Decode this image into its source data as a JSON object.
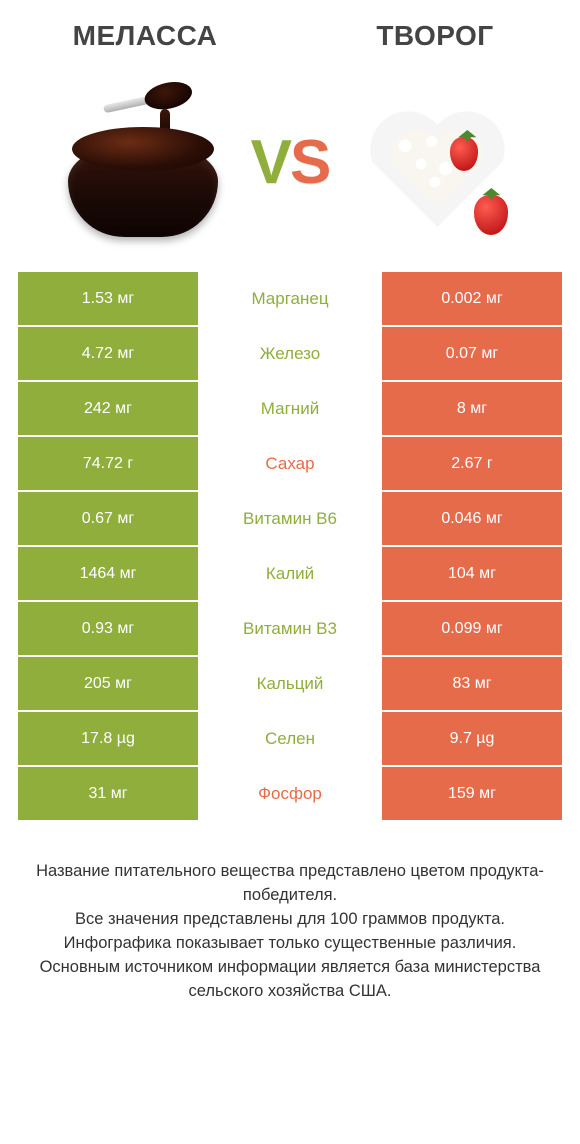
{
  "colors": {
    "left": "#8fae3c",
    "right": "#e66b4a",
    "text": "#333333",
    "bg": "#ffffff"
  },
  "font": {
    "title_size": 28,
    "cell_size": 16,
    "vs_size": 62,
    "footer_size": 16.5
  },
  "left": {
    "title": "МЕЛАССА"
  },
  "right": {
    "title": "ТВОРОГ"
  },
  "vs": "VS",
  "rows": [
    {
      "nutrient": "Марганец",
      "left": "1.53 мг",
      "right": "0.002 мг",
      "winner": "left"
    },
    {
      "nutrient": "Железо",
      "left": "4.72 мг",
      "right": "0.07 мг",
      "winner": "left"
    },
    {
      "nutrient": "Магний",
      "left": "242 мг",
      "right": "8 мг",
      "winner": "left"
    },
    {
      "nutrient": "Сахар",
      "left": "74.72 г",
      "right": "2.67 г",
      "winner": "right"
    },
    {
      "nutrient": "Витамин B6",
      "left": "0.67 мг",
      "right": "0.046 мг",
      "winner": "left"
    },
    {
      "nutrient": "Калий",
      "left": "1464 мг",
      "right": "104 мг",
      "winner": "left"
    },
    {
      "nutrient": "Витамин B3",
      "left": "0.93 мг",
      "right": "0.099 мг",
      "winner": "left"
    },
    {
      "nutrient": "Кальций",
      "left": "205 мг",
      "right": "83 мг",
      "winner": "left"
    },
    {
      "nutrient": "Селен",
      "left": "17.8 µg",
      "right": "9.7 µg",
      "winner": "left"
    },
    {
      "nutrient": "Фосфор",
      "left": "31 мг",
      "right": "159 мг",
      "winner": "right"
    }
  ],
  "footer": [
    "Название питательного вещества представлено цветом продукта-победителя.",
    "Все значения представлены для 100 граммов продукта.",
    "Инфографика показывает только существенные различия.",
    "Основным источником информации является база министерства сельского хозяйства США."
  ]
}
